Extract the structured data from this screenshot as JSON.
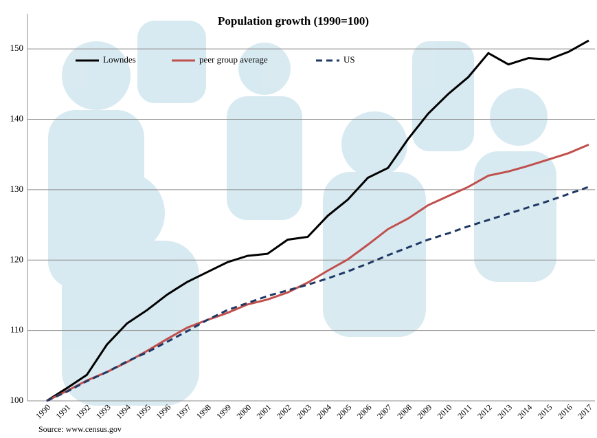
{
  "chart_data": {
    "type": "line",
    "title": "Population growth (1990=100)",
    "source": "Source: www.census.gov",
    "categories": [
      "1990",
      "1991",
      "1992",
      "1993",
      "1994",
      "1995",
      "1996",
      "1997",
      "1998",
      "1999",
      "2000",
      "2001",
      "2002",
      "2003",
      "2004",
      "2005",
      "2006",
      "2007",
      "2008",
      "2009",
      "2010",
      "2011",
      "2012",
      "2013",
      "2014",
      "2015",
      "2016",
      "2017"
    ],
    "series": [
      {
        "name": "Lowndes",
        "color": "#000000",
        "dash": false,
        "values": [
          100,
          101.8,
          103.7,
          108,
          111,
          112.9,
          115.1,
          116.9,
          118.3,
          119.7,
          120.6,
          120.9,
          122.9,
          123.3,
          126.3,
          128.6,
          131.7,
          133.1,
          137.2,
          140.8,
          143.6,
          146,
          149.4,
          147.8,
          148.7,
          148.5,
          149.6,
          151.2
        ]
      },
      {
        "name": "peer group average",
        "color": "#c0504d",
        "dash": false,
        "values": [
          100,
          101.4,
          102.9,
          104.1,
          105.5,
          107.1,
          108.8,
          110.4,
          111.5,
          112.5,
          113.7,
          114.4,
          115.4,
          116.8,
          118.5,
          120.1,
          122.2,
          124.4,
          125.9,
          127.8,
          129.1,
          130.4,
          132,
          132.6,
          133.4,
          134.3,
          135.2,
          136.4
        ]
      },
      {
        "name": "US",
        "color": "#1f3864",
        "dash": true,
        "values": [
          100,
          101.3,
          102.8,
          104.1,
          105.6,
          106.9,
          108.4,
          109.9,
          111.5,
          112.9,
          113.9,
          114.9,
          115.7,
          116.5,
          117.4,
          118.4,
          119.5,
          120.7,
          121.8,
          122.9,
          123.8,
          124.8,
          125.7,
          126.6,
          127.5,
          128.4,
          129.4,
          130.4
        ]
      }
    ],
    "ylim": [
      100,
      155
    ],
    "yticks": [
      100,
      110,
      120,
      130,
      140,
      150
    ],
    "grid": true
  }
}
